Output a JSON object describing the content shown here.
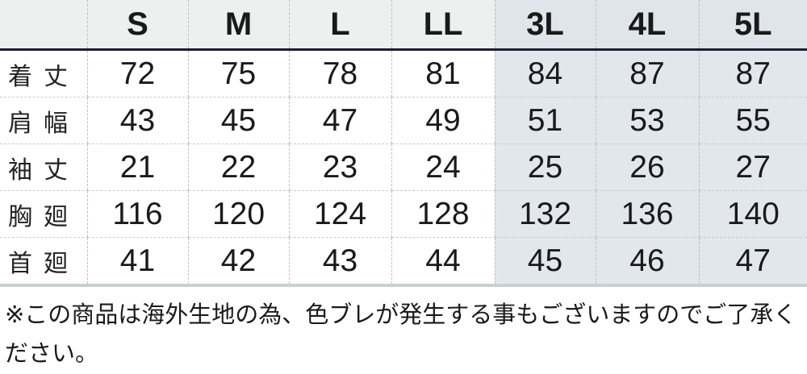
{
  "table": {
    "sizes": [
      "S",
      "M",
      "L",
      "LL",
      "3L",
      "4L",
      "5L"
    ],
    "extended_sizes_highlight": [
      "3L",
      "4L",
      "5L"
    ],
    "rows": [
      {
        "label": "着丈",
        "values": [
          "72",
          "75",
          "78",
          "81",
          "84",
          "87",
          "87"
        ]
      },
      {
        "label": "肩幅",
        "values": [
          "43",
          "45",
          "47",
          "49",
          "51",
          "53",
          "55"
        ]
      },
      {
        "label": "袖丈",
        "values": [
          "21",
          "22",
          "23",
          "24",
          "25",
          "26",
          "27"
        ]
      },
      {
        "label": "胸廻",
        "values": [
          "116",
          "120",
          "124",
          "128",
          "132",
          "136",
          "140"
        ]
      },
      {
        "label": "首廻",
        "values": [
          "41",
          "42",
          "43",
          "44",
          "45",
          "46",
          "47"
        ]
      }
    ]
  },
  "note": "※この商品は海外生地の為、色ブレが発生する事もございますのでご了承ください。",
  "colors": {
    "header_bg": "#eef0f0",
    "extended_bg": "#e1e7ec",
    "rule": "#1b1f2e"
  }
}
